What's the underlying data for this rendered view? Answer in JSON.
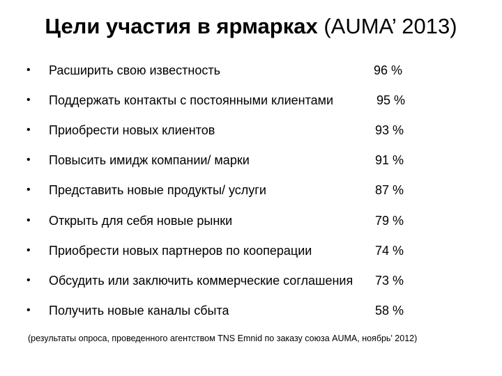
{
  "title": {
    "bold": "Цели участия в ярмарках",
    "normal": "(AUMA’ 2013)"
  },
  "items": [
    {
      "text": "Расширить свою известность",
      "value": "96 %"
    },
    {
      "text": "Поддержать контакты с постоянными клиентами",
      "value": "95 %"
    },
    {
      "text": "Приобрести новых клиентов",
      "value": "93 %"
    },
    {
      "text": "Повысить имидж компании/  марки",
      "value": "91 %"
    },
    {
      "text": "Представить новые продукты/ услуги",
      "value": "87 %"
    },
    {
      "text": "Открыть для себя новые рынки",
      "value": "79 %"
    },
    {
      "text": "Приобрести новых партнеров по кооперации",
      "value": "74 %"
    },
    {
      "text": "Обсудить или заключить коммерческие соглашения",
      "value": "73 %"
    },
    {
      "text": "Получить новые каналы сбыта",
      "value": "58 %"
    }
  ],
  "bullet": "•",
  "note": "(результаты опроса, проведенного агентством TNS Emnid по заказу союза AUMA, ноябрь' 2012)"
}
